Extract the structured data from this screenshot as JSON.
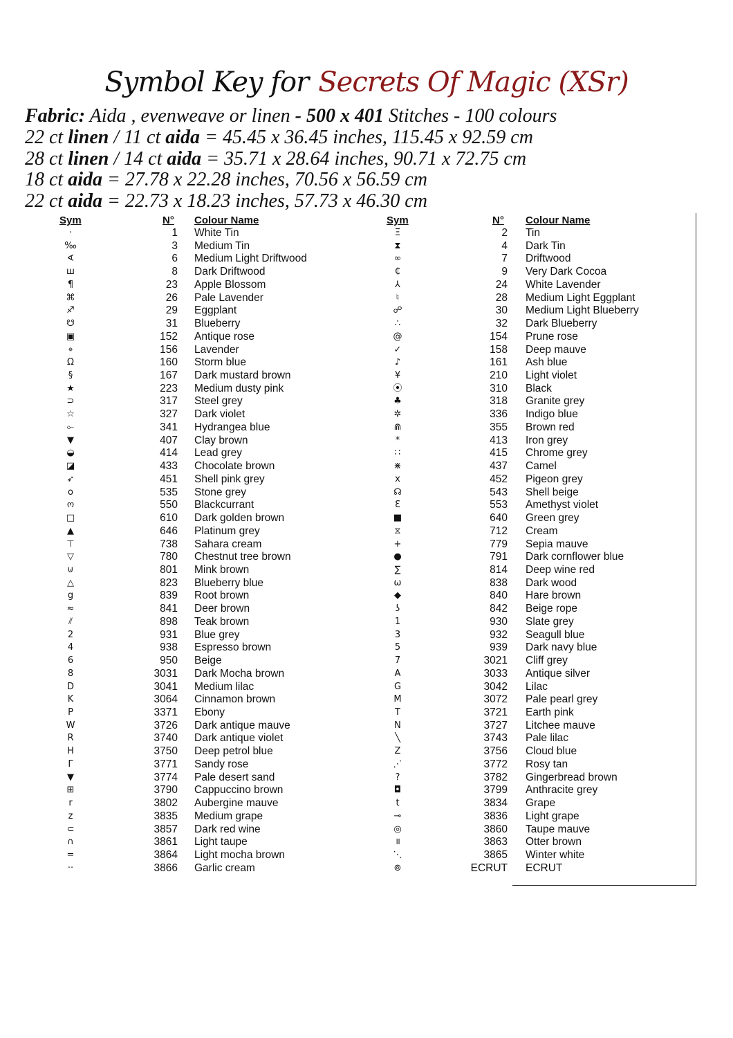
{
  "title": {
    "prefix": "Symbol Key for",
    "pattern": "Secrets Of Magic (XSr)",
    "accent_color": "#8b1a1a"
  },
  "info": {
    "fabric_label": "Fabric:",
    "fabric_text": " Aida , evenweave or  linen ",
    "stitches": "- 500 x 401",
    "stitches_suffix": " Stitches - 100 colours",
    "lines": [
      {
        "pre": "22 ct ",
        "b1": "linen",
        "mid": " / 11 ct ",
        "b2": "aida",
        "post": " = 45.45 x 36.45 inches, 115.45 x 92.59 cm"
      },
      {
        "pre": "28 ct ",
        "b1": "linen",
        "mid": " / 14 ct ",
        "b2": "aida",
        "post": " = 35.71 x 28.64 inches, 90.71 x 72.75 cm"
      },
      {
        "pre": "18 ct ",
        "b1": "aida",
        "mid": "",
        "b2": "",
        "post": "  = 27.78 x 22.28 inches, 70.56 x 56.59 cm"
      },
      {
        "pre": "22 ct ",
        "b1": "aida",
        "mid": "",
        "b2": "",
        "post": " = 22.73 x 18.23 inches, 57.73 x 46.30 cm"
      }
    ]
  },
  "headers": {
    "sym": "Sym",
    "num": "N°",
    "name": "Colour Name"
  },
  "left": [
    [
      "·",
      "1",
      "White Tin"
    ],
    [
      "‰",
      "3",
      "Medium Tin"
    ],
    [
      "∢",
      "6",
      "Medium Light Driftwood"
    ],
    [
      "ш",
      "8",
      "Dark Driftwood"
    ],
    [
      "¶",
      "23",
      "Apple Blossom"
    ],
    [
      "⌘",
      "26",
      "Pale Lavender"
    ],
    [
      "♐",
      "29",
      "Eggplant"
    ],
    [
      "☋",
      "31",
      "Blueberry"
    ],
    [
      "▣",
      "152",
      "Antique rose"
    ],
    [
      "⌖",
      "156",
      "Lavender"
    ],
    [
      "Ω",
      "160",
      "Storm blue"
    ],
    [
      "§",
      "167",
      "Dark mustard brown"
    ],
    [
      "★",
      "223",
      "Medium dusty pink"
    ],
    [
      "⊃",
      "317",
      "Steel grey"
    ],
    [
      "☆",
      "327",
      "Dark violet"
    ],
    [
      "⟜",
      "341",
      "Hydrangea blue"
    ],
    [
      "▼",
      "407",
      "Clay brown"
    ],
    [
      "◒",
      "414",
      "Lead grey"
    ],
    [
      "◪",
      "433",
      "Chocolate brown"
    ],
    [
      "➶",
      "451",
      "Shell pink grey"
    ],
    [
      "o",
      "535",
      "Stone grey"
    ],
    [
      "ო",
      "550",
      "Blackcurrant"
    ],
    [
      "□",
      "610",
      "Dark golden brown"
    ],
    [
      "▲",
      "646",
      "Platinum grey"
    ],
    [
      "⊤",
      "738",
      "Sahara cream"
    ],
    [
      "▽",
      "780",
      "Chestnut tree brown"
    ],
    [
      "⊍",
      "801",
      "Mink brown"
    ],
    [
      "△",
      "823",
      "Blueberry blue"
    ],
    [
      "g",
      "839",
      "Root brown"
    ],
    [
      "≈",
      "841",
      "Deer brown"
    ],
    [
      "⫽",
      "898",
      "Teak brown"
    ],
    [
      "2",
      "931",
      "Blue grey"
    ],
    [
      "4",
      "938",
      "Espresso brown"
    ],
    [
      "6",
      "950",
      "Beige"
    ],
    [
      "8",
      "3031",
      "Dark Mocha brown"
    ],
    [
      "D",
      "3041",
      "Medium lilac"
    ],
    [
      "K",
      "3064",
      "Cinnamon brown"
    ],
    [
      "P",
      "3371",
      "Ebony"
    ],
    [
      "W",
      "3726",
      "Dark antique mauve"
    ],
    [
      "R",
      "3740",
      "Dark antique violet"
    ],
    [
      "H",
      "3750",
      "Deep petrol blue"
    ],
    [
      "Γ",
      "3771",
      "Sandy rose"
    ],
    [
      "▼",
      "3774",
      "Pale desert sand"
    ],
    [
      "⊞",
      "3790",
      "Cappuccino brown"
    ],
    [
      "r",
      "3802",
      "Aubergine mauve"
    ],
    [
      "z",
      "3835",
      "Medium grape"
    ],
    [
      "⊂",
      "3857",
      "Dark red wine"
    ],
    [
      "∩",
      "3861",
      "Light taupe"
    ],
    [
      "=",
      "3864",
      "Light mocha brown"
    ],
    [
      "··",
      "3866",
      "Garlic cream"
    ]
  ],
  "right": [
    [
      "Ξ",
      "2",
      "Tin"
    ],
    [
      "⧗",
      "4",
      "Dark Tin"
    ],
    [
      "∞",
      "7",
      "Driftwood"
    ],
    [
      "₵",
      "9",
      "Very Dark Cocoa"
    ],
    [
      "⅄",
      "24",
      "White Lavender"
    ],
    [
      "♮",
      "28",
      "Medium Light Eggplant"
    ],
    [
      "☍",
      "30",
      "Medium Light Blueberry"
    ],
    [
      "∴",
      "32",
      "Dark Blueberry"
    ],
    [
      "@",
      "154",
      "Prune rose"
    ],
    [
      "✓",
      "158",
      "Deep mauve"
    ],
    [
      "♪",
      "161",
      "Ash blue"
    ],
    [
      "¥",
      "210",
      "Light violet"
    ],
    [
      "⦿",
      "310",
      "Black"
    ],
    [
      "♣",
      "318",
      "Granite grey"
    ],
    [
      "✲",
      "336",
      "Indigo blue"
    ],
    [
      "⋒",
      "355",
      "Brown red"
    ],
    [
      "*",
      "413",
      "Iron grey"
    ],
    [
      "∷",
      "415",
      "Chrome grey"
    ],
    [
      "⋇",
      "437",
      "Camel"
    ],
    [
      "x",
      "452",
      "Pigeon grey"
    ],
    [
      "☊",
      "543",
      "Shell beige"
    ],
    [
      "Ɛ",
      "553",
      "Amethyst violet"
    ],
    [
      "■",
      "640",
      "Green grey"
    ],
    [
      "⧖",
      "712",
      "Cream"
    ],
    [
      "+",
      "779",
      "Sepia mauve"
    ],
    [
      "●",
      "791",
      "Dark cornflower blue"
    ],
    [
      "∑",
      "814",
      "Deep wine red"
    ],
    [
      "ω",
      "838",
      "Dark wood"
    ],
    [
      "◆",
      "840",
      "Hare brown"
    ],
    [
      "ʖ",
      "842",
      "Beige rope"
    ],
    [
      "1",
      "930",
      "Slate grey"
    ],
    [
      "3",
      "932",
      "Seagull blue"
    ],
    [
      "5",
      "939",
      "Dark navy blue"
    ],
    [
      "7",
      "3021",
      "Cliff grey"
    ],
    [
      "A",
      "3033",
      "Antique silver"
    ],
    [
      "G",
      "3042",
      "Lilac"
    ],
    [
      "M",
      "3072",
      "Pale pearl grey"
    ],
    [
      "T",
      "3721",
      "Earth pink"
    ],
    [
      "N",
      "3727",
      "Litchee mauve"
    ],
    [
      "╲",
      "3743",
      "Pale lilac"
    ],
    [
      "Z",
      "3756",
      "Cloud blue"
    ],
    [
      "⋰",
      "3772",
      "Rosy tan"
    ],
    [
      "?",
      "3782",
      "Gingerbread brown"
    ],
    [
      "◘",
      "3799",
      "Anthracite grey"
    ],
    [
      "t",
      "3834",
      "Grape"
    ],
    [
      "⊸",
      "3836",
      "Light grape"
    ],
    [
      "◎",
      "3860",
      "Taupe mauve"
    ],
    [
      "॥",
      "3863",
      "Otter brown"
    ],
    [
      "⋱",
      "3865",
      "Winter white"
    ],
    [
      "⊚",
      "ECRUT",
      "ECRUT"
    ]
  ]
}
